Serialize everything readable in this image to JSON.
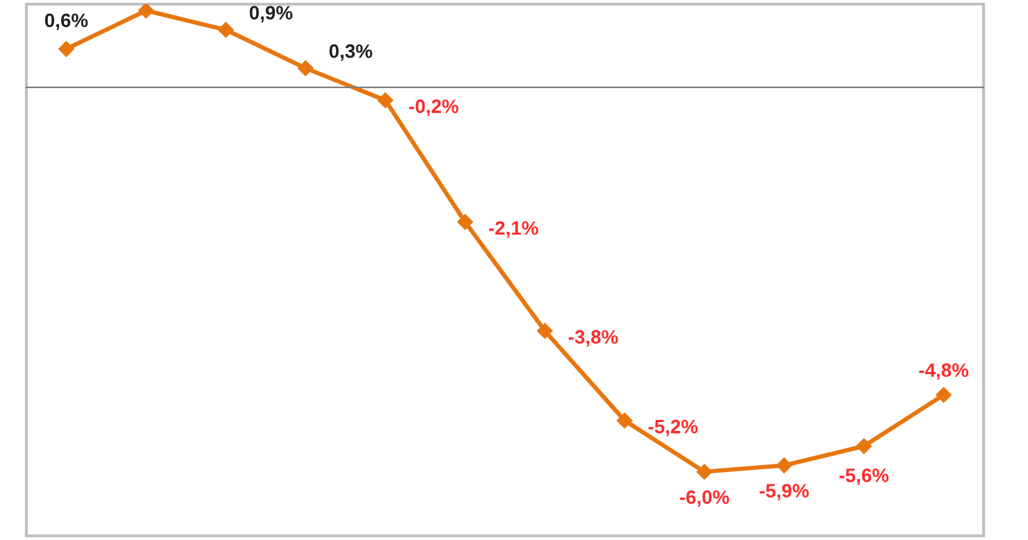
{
  "chart_data": {
    "type": "line",
    "categories": [
      null,
      null,
      null,
      null,
      null,
      null,
      null,
      null,
      null,
      null,
      null,
      null
    ],
    "series": [
      {
        "color": "#e8760f",
        "values": [
          0.6,
          1.2,
          0.9,
          0.3,
          -0.2,
          -2.1,
          -3.8,
          -5.2,
          -6.0,
          -5.9,
          -5.6,
          -4.8
        ],
        "value_labels": [
          "0,6%",
          null,
          "0,9%",
          "0,3%",
          "-0,2%",
          "-2,1%",
          "-3,8%",
          "-5,2%",
          "-6,0%",
          "-5,9%",
          "-5,6%",
          "-4,8%"
        ]
      }
    ],
    "ylim": [
      -7.0,
      1.3
    ],
    "marker": "diamond",
    "line_style": "solid",
    "grid": false,
    "legend": false
  }
}
